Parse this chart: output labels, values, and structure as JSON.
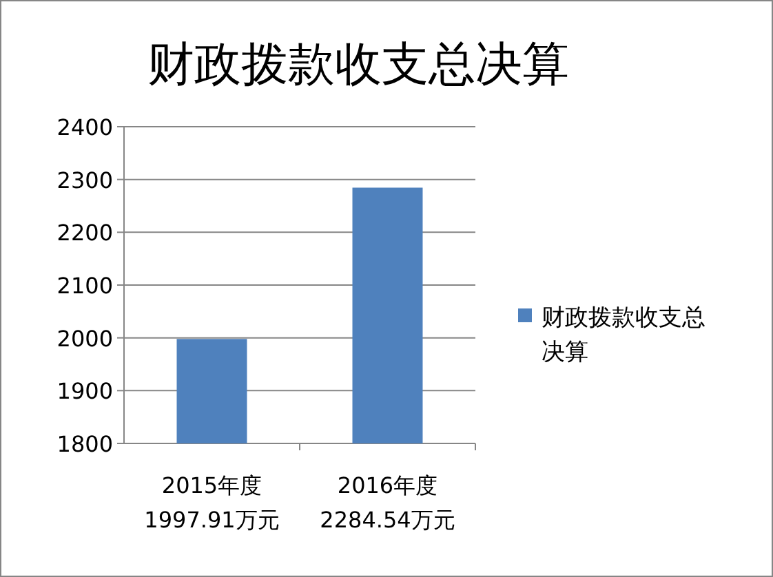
{
  "chart_data": {
    "type": "bar",
    "title": "财政拨款收支总决算",
    "categories": [
      "2015年度 1997.91万元",
      "2016年度 2284.54万元"
    ],
    "series": [
      {
        "name": "财政拨款收支总决算",
        "color": "#4f81bd",
        "values": [
          1997.91,
          2284.54
        ]
      }
    ],
    "ylim": [
      1800,
      2400
    ],
    "yticks": [
      1800,
      1900,
      2000,
      2100,
      2200,
      2300,
      2400
    ],
    "grid": true,
    "legend": "right"
  }
}
